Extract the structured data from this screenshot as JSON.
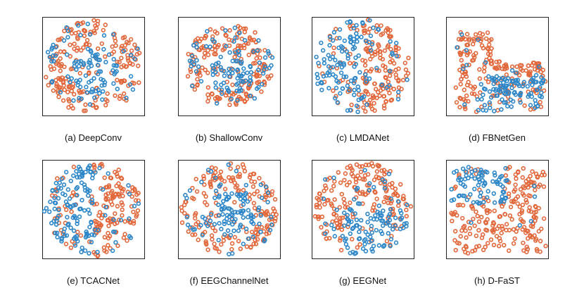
{
  "chart_data": {
    "type": "scatter",
    "description_kind": "t-SNE embeddings, two classes",
    "colors": {
      "class_a": "#e2683c",
      "class_b": "#2d87c8"
    },
    "panels": [
      {
        "id": "a",
        "caption": "(a) DeepConv",
        "shape": "circle",
        "blue_region": "center",
        "seed": 11
      },
      {
        "id": "b",
        "caption": "(b) ShallowConv",
        "shape": "cluster",
        "blue_region": "center",
        "seed": 23
      },
      {
        "id": "c",
        "caption": "(c) LMDANet",
        "shape": "circle",
        "blue_region": "left",
        "seed": 37
      },
      {
        "id": "d",
        "caption": "(d) FBNetGen",
        "shape": "spread",
        "blue_region": "bottom",
        "seed": 41
      },
      {
        "id": "e",
        "caption": "(e) TCACNet",
        "shape": "circle",
        "blue_region": "left",
        "seed": 53
      },
      {
        "id": "f",
        "caption": "(f) EEGChannelNet",
        "shape": "circle",
        "blue_region": "center",
        "seed": 67
      },
      {
        "id": "g",
        "caption": "(g) EEGNet",
        "shape": "circle",
        "blue_region": "bottom-right",
        "seed": 79
      },
      {
        "id": "h",
        "caption": "(h) D-FaST",
        "shape": "wide",
        "blue_region": "top-left",
        "seed": 83
      }
    ],
    "points_per_panel": 300,
    "xlim": [
      0,
      1
    ],
    "ylim": [
      0,
      1
    ]
  }
}
